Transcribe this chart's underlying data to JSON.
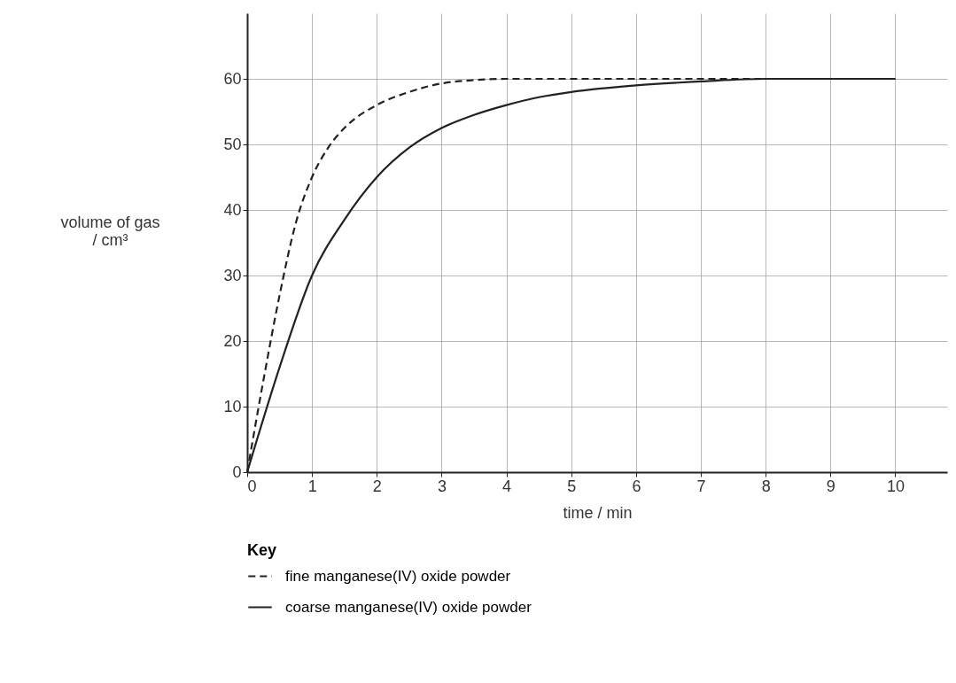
{
  "chart_data": {
    "type": "line",
    "xlabel": "time / min",
    "ylabel": "volume of gas\n/ cm³",
    "legend_title": "Key",
    "legend": "bottom left",
    "grid": true,
    "marker": "none",
    "xlim": [
      0,
      10.8
    ],
    "xticks": [
      0,
      1,
      2,
      3,
      4,
      5,
      6,
      7,
      8,
      9,
      10
    ],
    "ylim": [
      0,
      70
    ],
    "yticks": [
      0,
      10,
      20,
      30,
      40,
      50,
      60
    ],
    "series": [
      {
        "name": "fine manganese(IV) oxide powder",
        "color": "#222222",
        "line_style": "dashed",
        "x": [
          0,
          0.25,
          0.5,
          0.75,
          1,
          1.25,
          1.5,
          2,
          2.5,
          3,
          3.5,
          4,
          5,
          6,
          8,
          10
        ],
        "values": [
          0,
          14,
          27,
          38,
          45,
          49.5,
          52.5,
          56,
          58,
          59.3,
          59.8,
          60,
          60,
          60,
          60,
          60
        ]
      },
      {
        "name": "coarse manganese(IV) oxide powder",
        "color": "#222222",
        "line_style": "solid",
        "x": [
          0,
          0.5,
          1,
          1.5,
          2,
          2.5,
          3,
          3.5,
          4,
          4.5,
          5,
          6,
          7,
          8,
          10
        ],
        "values": [
          0,
          16,
          30,
          38.5,
          45,
          49.5,
          52.5,
          54.5,
          56,
          57.2,
          58,
          59,
          59.6,
          60,
          60
        ]
      }
    ]
  }
}
